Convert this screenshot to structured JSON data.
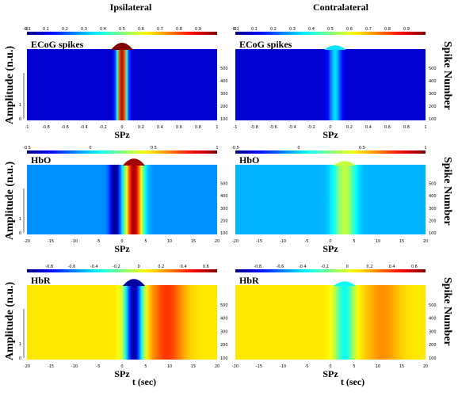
{
  "figure": {
    "column_titles": [
      "Ipsilateral",
      "Contralateral"
    ],
    "ylabel_left": "Amplitude (n.u.)",
    "ylabel_right": "Spike Number",
    "xlabel": "t (sec)",
    "peak_marker": "SPz"
  },
  "chart_data": [
    {
      "type": "heatmap",
      "title": "ECoG spikes",
      "side": "Ipsilateral",
      "colorbar": {
        "range": [
          0,
          1
        ],
        "ticks": [
          "0",
          "0.1",
          "0.2",
          "0.3",
          "0.4",
          "0.5",
          "0.6",
          "0.7",
          "0.8",
          "0.9"
        ],
        "pre_label": "-0.1"
      },
      "x_ticks": [
        "-1",
        "-0.8",
        "-0.6",
        "-0.4",
        "-0.2",
        "0",
        "0.2",
        "0.4",
        "0.6",
        "0.8",
        "1"
      ],
      "xlim": [
        -1,
        1
      ],
      "left_ticks": [
        "0",
        "1"
      ],
      "right_ticks": [
        "100",
        "200",
        "300",
        "400",
        "500"
      ],
      "ylim": [
        100,
        600
      ],
      "peak_x": 0,
      "peak_width": 0.05,
      "peak_value": 1.0,
      "baseline": 0.08
    },
    {
      "type": "heatmap",
      "title": "ECoG spikes",
      "side": "Contralateral",
      "colorbar": {
        "range": [
          0,
          1
        ],
        "ticks": [
          "0",
          "0.1",
          "0.2",
          "0.3",
          "0.4",
          "0.5",
          "0.6",
          "0.7",
          "0.8",
          "0.9"
        ],
        "pre_label": "-0.1"
      },
      "x_ticks": [
        "-1",
        "-0.8",
        "-0.6",
        "-0.4",
        "-0.2",
        "0",
        "0.2",
        "0.4",
        "0.6",
        "0.8",
        "1"
      ],
      "xlim": [
        -1,
        1
      ],
      "left_ticks": [],
      "right_ticks": [
        "100",
        "200",
        "300",
        "400",
        "500"
      ],
      "ylim": [
        100,
        600
      ],
      "peak_x": 0.05,
      "peak_width": 0.06,
      "peak_value": 0.35,
      "baseline": 0.08
    },
    {
      "type": "heatmap",
      "title": "HbO",
      "side": "Ipsilateral",
      "colorbar": {
        "range": [
          -0.5,
          1
        ],
        "ticks": [
          "-0.5",
          "0",
          "0.5",
          "1"
        ]
      },
      "x_ticks": [
        "-20",
        "-15",
        "-10",
        "-5",
        "0",
        "5",
        "10",
        "15",
        "20"
      ],
      "xlim": [
        -20,
        20
      ],
      "left_ticks": [
        "0",
        "1"
      ],
      "right_ticks": [
        "100",
        "200",
        "300",
        "400",
        "500"
      ],
      "ylim": [
        100,
        600
      ],
      "peak_x": 2.5,
      "peak_width": 1.8,
      "peak_value": 0.95,
      "dip_x": -1.5,
      "dip_value": -0.5,
      "baseline": -0.1
    },
    {
      "type": "heatmap",
      "title": "HbO",
      "side": "Contralateral",
      "colorbar": {
        "range": [
          -0.5,
          1
        ],
        "ticks": [
          "-0.5",
          "0",
          "0.5",
          "1"
        ]
      },
      "x_ticks": [
        "-20",
        "-15",
        "-10",
        "-5",
        "0",
        "5",
        "10",
        "15",
        "20"
      ],
      "xlim": [
        -20,
        20
      ],
      "left_ticks": [],
      "right_ticks": [
        "100",
        "200",
        "300",
        "400",
        "500"
      ],
      "ylim": [
        100,
        600
      ],
      "peak_x": 3,
      "peak_width": 2.2,
      "peak_value": 0.35,
      "dip_x": -1,
      "dip_value": -0.05,
      "baseline": -0.05
    },
    {
      "type": "heatmap",
      "title": "HbR",
      "side": "Ipsilateral",
      "colorbar": {
        "range": [
          -1,
          0.7
        ],
        "ticks": [
          "-0.8",
          "-0.6",
          "-0.4",
          "-0.2",
          "0",
          "0.2",
          "0.4",
          "0.6"
        ]
      },
      "x_ticks": [
        "-20",
        "-15",
        "-10",
        "-5",
        "0",
        "5",
        "10",
        "15",
        "20"
      ],
      "xlim": [
        -20,
        20
      ],
      "left_ticks": [
        "0",
        "1"
      ],
      "right_ticks": [
        "100",
        "200",
        "300",
        "400",
        "500"
      ],
      "ylim": [
        100,
        600
      ],
      "peak_x": 2.5,
      "peak_width": 1.8,
      "peak_value": -0.95,
      "side_x": 9.5,
      "side_value": 0.4,
      "baseline": 0.1
    },
    {
      "type": "heatmap",
      "title": "HbR",
      "side": "Contralateral",
      "colorbar": {
        "range": [
          -1,
          0.7
        ],
        "ticks": [
          "-0.8",
          "-0.6",
          "-0.4",
          "-0.2",
          "0",
          "0.2",
          "0.4",
          "0.6"
        ]
      },
      "x_ticks": [
        "-20",
        "-15",
        "-10",
        "-5",
        "0",
        "5",
        "10",
        "15",
        "20"
      ],
      "xlim": [
        -20,
        20
      ],
      "left_ticks": [],
      "right_ticks": [
        "100",
        "200",
        "300",
        "400",
        "500"
      ],
      "ylim": [
        100,
        600
      ],
      "peak_x": 3,
      "peak_width": 2.0,
      "peak_value": -0.35,
      "side_x": 11,
      "side_value": 0.25,
      "baseline": 0.1
    }
  ]
}
